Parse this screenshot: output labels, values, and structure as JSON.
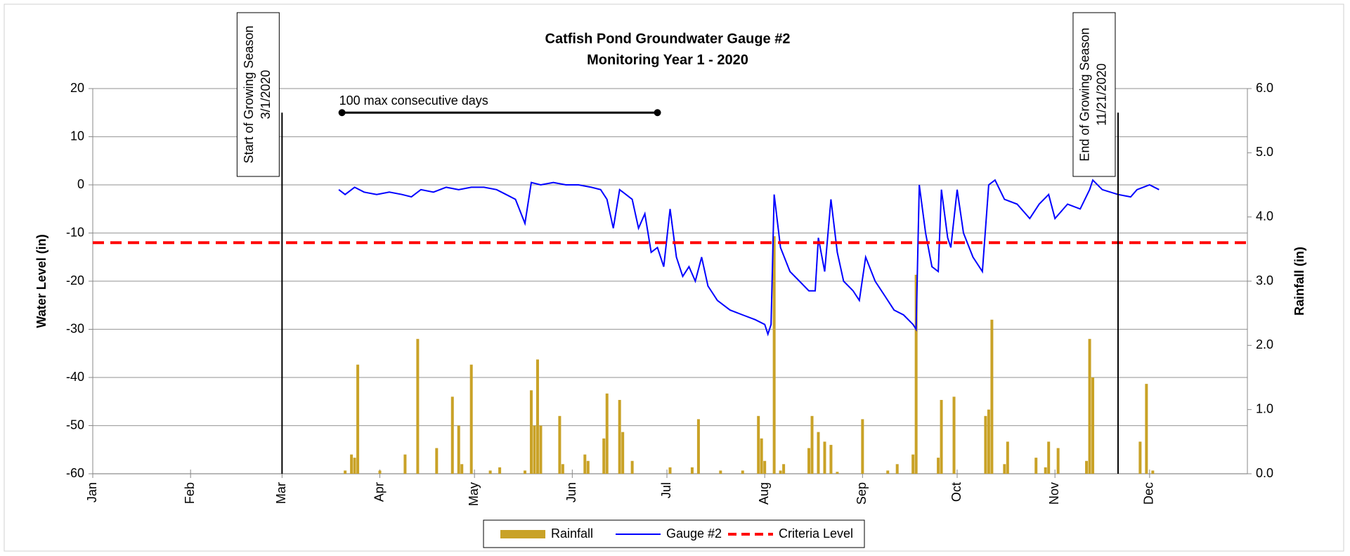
{
  "chart_data": {
    "type": "line",
    "title": "Catfish Pond Groundwater Gauge #2",
    "subtitle": "Monitoring Year 1 - 2020",
    "y_label": "Water Level (in)",
    "y2_label": "Rainfall (in)",
    "xlim": [
      0,
      366
    ],
    "xticks": [
      {
        "value": 0,
        "label": "Jan"
      },
      {
        "value": 31,
        "label": "Feb"
      },
      {
        "value": 60,
        "label": "Mar"
      },
      {
        "value": 91,
        "label": "Apr"
      },
      {
        "value": 121,
        "label": "May"
      },
      {
        "value": 152,
        "label": "Jun"
      },
      {
        "value": 182,
        "label": "Jul"
      },
      {
        "value": 213,
        "label": "Aug"
      },
      {
        "value": 244,
        "label": "Sep"
      },
      {
        "value": 274,
        "label": "Oct"
      },
      {
        "value": 305,
        "label": "Nov"
      },
      {
        "value": 335,
        "label": "Dec"
      }
    ],
    "ylim": [
      -60,
      20
    ],
    "yticks": [
      -60,
      -50,
      -40,
      -30,
      -20,
      -10,
      0,
      10,
      20
    ],
    "y2lim": [
      0,
      6
    ],
    "y2ticks": [
      {
        "value": 0,
        "label": "0.0"
      },
      {
        "value": 1,
        "label": "1.0"
      },
      {
        "value": 2,
        "label": "2.0"
      },
      {
        "value": 3,
        "label": "3.0"
      },
      {
        "value": 4,
        "label": "4.0"
      },
      {
        "value": 5,
        "label": "5.0"
      },
      {
        "value": 6,
        "label": "6.0"
      }
    ],
    "grid": true,
    "legend": "bottom",
    "series": [
      {
        "name": "Rainfall",
        "type": "bar",
        "axis": "y2",
        "color": "#c9a227",
        "x": [
          80,
          82,
          83,
          84,
          91,
          99,
          103,
          109,
          114,
          116,
          117,
          120,
          126,
          129,
          137,
          139,
          140,
          141,
          142,
          148,
          149,
          156,
          157,
          162,
          163,
          167,
          168,
          171,
          183,
          190,
          192,
          199,
          206,
          211,
          212,
          213,
          216,
          218,
          219,
          227,
          228,
          230,
          232,
          234,
          236,
          244,
          252,
          255,
          260,
          261,
          268,
          269,
          273,
          283,
          284,
          285,
          289,
          290,
          299,
          302,
          303,
          306,
          315,
          316,
          317,
          332,
          334,
          336
        ],
        "values": [
          0.05,
          0.3,
          0.25,
          1.7,
          0.05,
          0.3,
          2.1,
          0.4,
          1.2,
          0.75,
          0.15,
          1.7,
          0.05,
          0.1,
          0.05,
          1.3,
          0.75,
          1.78,
          0.75,
          0.9,
          0.15,
          0.3,
          0.2,
          0.55,
          1.25,
          1.15,
          0.65,
          0.2,
          0.1,
          0.1,
          0.85,
          0.05,
          0.05,
          0.9,
          0.55,
          0.2,
          3.7,
          0.05,
          0.15,
          0.4,
          0.9,
          0.65,
          0.5,
          0.45,
          0.03,
          0.85,
          0.05,
          0.15,
          0.3,
          3.1,
          0.25,
          1.15,
          1.2,
          0.9,
          1.0,
          2.4,
          0.15,
          0.5,
          0.25,
          0.1,
          0.5,
          0.4,
          0.2,
          2.1,
          1.5,
          0.5,
          1.4,
          0.05
        ]
      },
      {
        "name": "Gauge #2",
        "type": "line",
        "color": "#0000ff",
        "x": [
          78,
          80,
          83,
          86,
          90,
          94,
          98,
          101,
          104,
          108,
          112,
          116,
          120,
          124,
          128,
          131,
          134,
          137,
          139,
          142,
          146,
          150,
          154,
          158,
          161,
          163,
          165,
          167,
          169,
          171,
          173,
          175,
          177,
          179,
          181,
          183,
          185,
          187,
          189,
          191,
          193,
          195,
          198,
          202,
          206,
          210,
          213,
          214,
          215,
          216,
          218,
          221,
          224,
          227,
          229,
          230,
          232,
          234,
          236,
          238,
          241,
          243,
          245,
          248,
          251,
          254,
          257,
          260,
          261,
          262,
          264,
          266,
          268,
          269,
          271,
          272,
          274,
          276,
          279,
          282,
          284,
          286,
          289,
          293,
          297,
          300,
          303,
          305,
          309,
          313,
          316,
          317,
          320,
          325,
          329,
          331,
          335,
          338
        ],
        "values": [
          -1,
          -2,
          -0.5,
          -1.5,
          -2,
          -1.5,
          -2,
          -2.5,
          -1,
          -1.5,
          -0.5,
          -1,
          -0.5,
          -0.5,
          -1,
          -2,
          -3,
          -8,
          0.5,
          0,
          0.5,
          0,
          0,
          -0.5,
          -1,
          -3,
          -9,
          -1,
          -2,
          -3,
          -9,
          -6,
          -14,
          -13,
          -17,
          -5,
          -15,
          -19,
          -17,
          -20,
          -15,
          -21,
          -24,
          -26,
          -27,
          -28,
          -29,
          -31,
          -29,
          -2,
          -13,
          -18,
          -20,
          -22,
          -22,
          -11,
          -18,
          -3,
          -14,
          -20,
          -22,
          -24,
          -15,
          -20,
          -23,
          -26,
          -27,
          -29,
          -30,
          0,
          -10,
          -17,
          -18,
          -1,
          -11,
          -13,
          -1,
          -10,
          -15,
          -18,
          0,
          1,
          -3,
          -4,
          -7,
          -4,
          -2,
          -7,
          -4,
          -5,
          -1,
          1,
          -1,
          -2,
          -2.5,
          -1,
          0,
          -1
        ]
      },
      {
        "name": "Criteria Level",
        "type": "dashed",
        "color": "#ff0000",
        "x": [
          0,
          366
        ],
        "values": [
          -12,
          -12
        ]
      }
    ],
    "annotations": [
      {
        "lines": [
          "Start of Growing Season",
          "3/1/2020"
        ],
        "x": 60,
        "y": 15
      },
      {
        "lines": [
          "End of Growing Season",
          "11/21/2020"
        ],
        "x": 325,
        "y": 15
      }
    ],
    "span": {
      "text": "100 max consecutive days",
      "x": [
        79,
        179
      ],
      "y": 15
    }
  }
}
